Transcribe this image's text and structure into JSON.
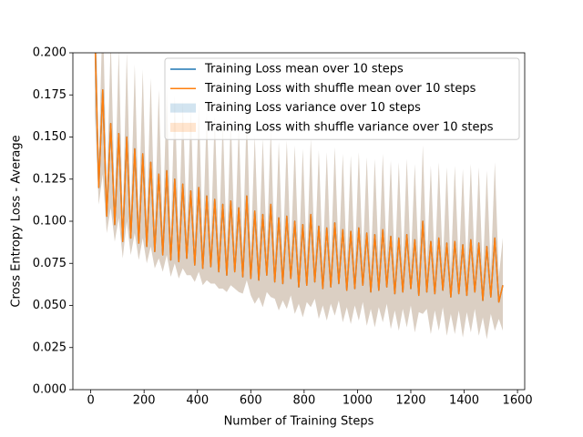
{
  "chart_data": {
    "type": "line",
    "xlabel": "Number of Training Steps",
    "ylabel": "Cross Entropy Loss - Average",
    "xlim": [
      -67,
      1627
    ],
    "ylim": [
      0,
      0.2
    ],
    "xticks": [
      0,
      200,
      400,
      600,
      800,
      1000,
      1200,
      1400,
      1600
    ],
    "yticks": [
      {
        "value": 0,
        "label": "0.000"
      },
      {
        "value": 0.025,
        "label": "0.025"
      },
      {
        "value": 0.05,
        "label": "0.050"
      },
      {
        "value": 0.075,
        "label": "0.075"
      },
      {
        "value": 0.1,
        "label": "0.100"
      },
      {
        "value": 0.125,
        "label": "0.125"
      },
      {
        "value": 0.15,
        "label": "0.150"
      },
      {
        "value": 0.175,
        "label": "0.175"
      },
      {
        "value": 0.2,
        "label": "0.200"
      }
    ],
    "legend": "upper right",
    "x": [
      15,
      30,
      45,
      60,
      75,
      90,
      105,
      120,
      135,
      150,
      165,
      180,
      195,
      210,
      225,
      240,
      255,
      270,
      285,
      300,
      315,
      330,
      345,
      360,
      375,
      390,
      405,
      420,
      435,
      450,
      465,
      480,
      495,
      510,
      525,
      540,
      555,
      570,
      585,
      600,
      615,
      630,
      645,
      660,
      675,
      690,
      705,
      720,
      735,
      750,
      765,
      780,
      795,
      810,
      825,
      840,
      855,
      870,
      885,
      900,
      915,
      930,
      945,
      960,
      975,
      990,
      1005,
      1020,
      1035,
      1050,
      1065,
      1080,
      1095,
      1110,
      1125,
      1140,
      1155,
      1170,
      1185,
      1200,
      1215,
      1230,
      1245,
      1260,
      1275,
      1290,
      1305,
      1320,
      1335,
      1350,
      1365,
      1380,
      1395,
      1410,
      1425,
      1440,
      1455,
      1470,
      1485,
      1500,
      1515,
      1530,
      1545
    ],
    "series": [
      {
        "name": "Training Loss mean over 10 steps",
        "color": "#1f77b4",
        "values": [
          0.215,
          0.12,
          0.178,
          0.103,
          0.158,
          0.098,
          0.152,
          0.088,
          0.15,
          0.09,
          0.143,
          0.087,
          0.14,
          0.085,
          0.135,
          0.082,
          0.128,
          0.08,
          0.13,
          0.077,
          0.125,
          0.076,
          0.122,
          0.078,
          0.118,
          0.074,
          0.12,
          0.072,
          0.115,
          0.073,
          0.113,
          0.07,
          0.11,
          0.068,
          0.112,
          0.07,
          0.108,
          0.067,
          0.115,
          0.066,
          0.106,
          0.065,
          0.104,
          0.068,
          0.11,
          0.064,
          0.102,
          0.063,
          0.103,
          0.066,
          0.1,
          0.061,
          0.098,
          0.062,
          0.104,
          0.064,
          0.097,
          0.06,
          0.096,
          0.061,
          0.099,
          0.063,
          0.095,
          0.059,
          0.094,
          0.06,
          0.096,
          0.062,
          0.093,
          0.058,
          0.092,
          0.059,
          0.095,
          0.061,
          0.091,
          0.057,
          0.09,
          0.058,
          0.092,
          0.06,
          0.089,
          0.056,
          0.1,
          0.058,
          0.088,
          0.057,
          0.09,
          0.059,
          0.087,
          0.055,
          0.088,
          0.057,
          0.086,
          0.056,
          0.089,
          0.058,
          0.087,
          0.053,
          0.085,
          0.055,
          0.09,
          0.052,
          0.062
        ]
      },
      {
        "name": "Training Loss with shuffle mean over 10 steps",
        "color": "#ff7f0e",
        "values": [
          0.215,
          0.12,
          0.178,
          0.103,
          0.158,
          0.098,
          0.152,
          0.088,
          0.15,
          0.09,
          0.143,
          0.087,
          0.14,
          0.085,
          0.135,
          0.082,
          0.128,
          0.08,
          0.13,
          0.077,
          0.125,
          0.076,
          0.122,
          0.078,
          0.118,
          0.074,
          0.12,
          0.072,
          0.115,
          0.073,
          0.113,
          0.07,
          0.11,
          0.068,
          0.112,
          0.07,
          0.108,
          0.067,
          0.115,
          0.066,
          0.106,
          0.065,
          0.104,
          0.068,
          0.11,
          0.064,
          0.102,
          0.063,
          0.103,
          0.066,
          0.1,
          0.061,
          0.098,
          0.062,
          0.104,
          0.064,
          0.097,
          0.06,
          0.096,
          0.061,
          0.099,
          0.063,
          0.095,
          0.059,
          0.094,
          0.06,
          0.096,
          0.062,
          0.093,
          0.058,
          0.092,
          0.059,
          0.095,
          0.061,
          0.091,
          0.057,
          0.09,
          0.058,
          0.092,
          0.06,
          0.089,
          0.056,
          0.1,
          0.058,
          0.088,
          0.057,
          0.09,
          0.059,
          0.087,
          0.055,
          0.088,
          0.057,
          0.086,
          0.056,
          0.089,
          0.058,
          0.087,
          0.053,
          0.085,
          0.055,
          0.09,
          0.052,
          0.062
        ]
      }
    ],
    "bands": [
      {
        "name": "Training Loss variance over 10 steps",
        "color": "#1f77b4",
        "upper": [
          0.265,
          0.135,
          0.228,
          0.118,
          0.208,
          0.113,
          0.202,
          0.103,
          0.2,
          0.105,
          0.193,
          0.102,
          0.19,
          0.1,
          0.185,
          0.097,
          0.178,
          0.095,
          0.18,
          0.092,
          0.175,
          0.091,
          0.172,
          0.093,
          0.168,
          0.089,
          0.17,
          0.087,
          0.165,
          0.088,
          0.163,
          0.085,
          0.16,
          0.083,
          0.162,
          0.085,
          0.158,
          0.082,
          0.165,
          0.081,
          0.151,
          0.08,
          0.149,
          0.083,
          0.155,
          0.079,
          0.147,
          0.078,
          0.148,
          0.081,
          0.145,
          0.076,
          0.143,
          0.077,
          0.149,
          0.079,
          0.142,
          0.075,
          0.141,
          0.076,
          0.144,
          0.078,
          0.14,
          0.074,
          0.139,
          0.075,
          0.141,
          0.077,
          0.138,
          0.073,
          0.137,
          0.074,
          0.14,
          0.076,
          0.136,
          0.072,
          0.135,
          0.073,
          0.137,
          0.075,
          0.134,
          0.071,
          0.145,
          0.073,
          0.133,
          0.072,
          0.135,
          0.074,
          0.132,
          0.07,
          0.133,
          0.072,
          0.131,
          0.071,
          0.134,
          0.073,
          0.132,
          0.068,
          0.13,
          0.07,
          0.135,
          0.067,
          0.09
        ],
        "lower": [
          0.165,
          0.11,
          0.128,
          0.093,
          0.108,
          0.088,
          0.102,
          0.078,
          0.1,
          0.08,
          0.093,
          0.077,
          0.09,
          0.075,
          0.085,
          0.072,
          0.078,
          0.07,
          0.08,
          0.067,
          0.075,
          0.066,
          0.072,
          0.068,
          0.068,
          0.064,
          0.07,
          0.062,
          0.065,
          0.063,
          0.063,
          0.06,
          0.06,
          0.058,
          0.062,
          0.06,
          0.058,
          0.057,
          0.065,
          0.056,
          0.051,
          0.055,
          0.049,
          0.058,
          0.055,
          0.054,
          0.047,
          0.053,
          0.048,
          0.056,
          0.045,
          0.051,
          0.043,
          0.052,
          0.049,
          0.054,
          0.042,
          0.05,
          0.041,
          0.051,
          0.044,
          0.053,
          0.04,
          0.049,
          0.039,
          0.05,
          0.041,
          0.052,
          0.038,
          0.048,
          0.037,
          0.049,
          0.04,
          0.051,
          0.036,
          0.047,
          0.035,
          0.048,
          0.037,
          0.05,
          0.034,
          0.046,
          0.045,
          0.048,
          0.033,
          0.047,
          0.035,
          0.049,
          0.032,
          0.045,
          0.033,
          0.047,
          0.031,
          0.046,
          0.034,
          0.048,
          0.032,
          0.043,
          0.03,
          0.045,
          0.035,
          0.042,
          0.035
        ]
      },
      {
        "name": "Training Loss with shuffle variance over 10 steps",
        "color": "#ff7f0e",
        "upper": [
          0.265,
          0.135,
          0.228,
          0.118,
          0.208,
          0.113,
          0.202,
          0.103,
          0.2,
          0.105,
          0.193,
          0.102,
          0.19,
          0.1,
          0.185,
          0.097,
          0.178,
          0.095,
          0.18,
          0.092,
          0.175,
          0.091,
          0.172,
          0.093,
          0.168,
          0.089,
          0.17,
          0.087,
          0.165,
          0.088,
          0.163,
          0.085,
          0.16,
          0.083,
          0.162,
          0.085,
          0.158,
          0.082,
          0.165,
          0.081,
          0.151,
          0.08,
          0.149,
          0.083,
          0.155,
          0.079,
          0.147,
          0.078,
          0.148,
          0.081,
          0.145,
          0.076,
          0.143,
          0.077,
          0.149,
          0.079,
          0.142,
          0.075,
          0.141,
          0.076,
          0.144,
          0.078,
          0.14,
          0.074,
          0.139,
          0.075,
          0.141,
          0.077,
          0.138,
          0.073,
          0.137,
          0.074,
          0.14,
          0.076,
          0.136,
          0.072,
          0.135,
          0.073,
          0.137,
          0.075,
          0.134,
          0.071,
          0.145,
          0.073,
          0.133,
          0.072,
          0.135,
          0.074,
          0.132,
          0.07,
          0.133,
          0.072,
          0.131,
          0.071,
          0.134,
          0.073,
          0.132,
          0.068,
          0.13,
          0.07,
          0.135,
          0.067,
          0.09
        ],
        "lower": [
          0.165,
          0.11,
          0.128,
          0.093,
          0.108,
          0.088,
          0.102,
          0.078,
          0.1,
          0.08,
          0.093,
          0.077,
          0.09,
          0.075,
          0.085,
          0.072,
          0.078,
          0.07,
          0.08,
          0.067,
          0.075,
          0.066,
          0.072,
          0.068,
          0.068,
          0.064,
          0.07,
          0.062,
          0.065,
          0.063,
          0.063,
          0.06,
          0.06,
          0.058,
          0.062,
          0.06,
          0.058,
          0.057,
          0.065,
          0.056,
          0.051,
          0.055,
          0.049,
          0.058,
          0.055,
          0.054,
          0.047,
          0.053,
          0.048,
          0.056,
          0.045,
          0.051,
          0.043,
          0.052,
          0.049,
          0.054,
          0.042,
          0.05,
          0.041,
          0.051,
          0.044,
          0.053,
          0.04,
          0.049,
          0.039,
          0.05,
          0.041,
          0.052,
          0.038,
          0.048,
          0.037,
          0.049,
          0.04,
          0.051,
          0.036,
          0.047,
          0.035,
          0.048,
          0.037,
          0.05,
          0.034,
          0.046,
          0.045,
          0.048,
          0.033,
          0.047,
          0.035,
          0.049,
          0.032,
          0.045,
          0.033,
          0.047,
          0.031,
          0.046,
          0.034,
          0.048,
          0.032,
          0.043,
          0.03,
          0.045,
          0.035,
          0.042,
          0.035
        ]
      }
    ]
  }
}
